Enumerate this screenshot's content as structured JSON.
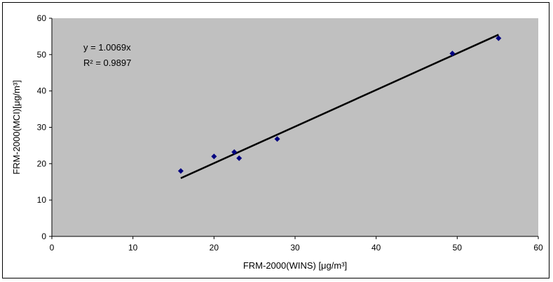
{
  "chart_data": {
    "type": "scatter",
    "title": "",
    "xlabel": "FRM-2000(WINS) [μg/m³]",
    "ylabel": "FRM-2000(MCI)[μg/m³]",
    "xlim": [
      0,
      60
    ],
    "ylim": [
      0,
      60
    ],
    "x_ticks": [
      0,
      10,
      20,
      30,
      40,
      50,
      60
    ],
    "y_ticks": [
      0,
      10,
      20,
      30,
      40,
      50,
      60
    ],
    "grid": false,
    "legend": "none",
    "plot_background": "#c0c0c0",
    "series": [
      {
        "marker": "diamond",
        "color": "#000080",
        "points": [
          {
            "x": 15.9,
            "y": 18.0
          },
          {
            "x": 20.0,
            "y": 22.0
          },
          {
            "x": 22.5,
            "y": 23.2
          },
          {
            "x": 23.1,
            "y": 21.5
          },
          {
            "x": 27.8,
            "y": 26.8
          },
          {
            "x": 49.4,
            "y": 50.3
          },
          {
            "x": 55.1,
            "y": 54.5
          }
        ]
      }
    ],
    "trendline": {
      "slope": 1.0069,
      "x_range": [
        15.9,
        55.1
      ],
      "color": "#000000",
      "equation_label": "y = 1.0069x",
      "r2_label": "R² = 0.9897"
    }
  }
}
